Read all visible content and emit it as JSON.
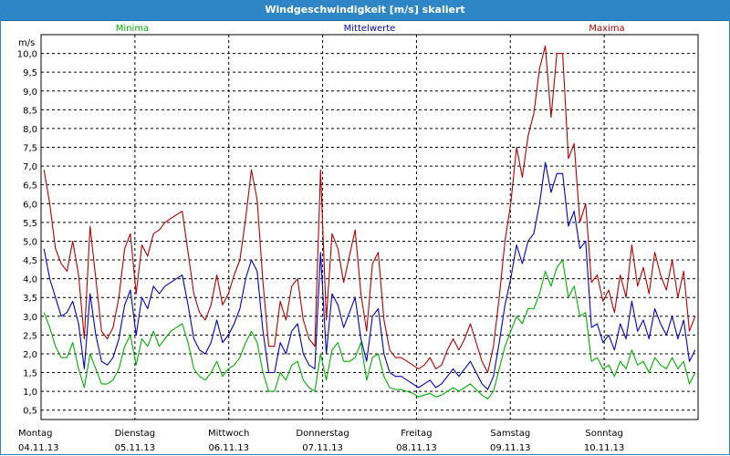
{
  "window_title": "Windgeschwindigkeit [m/s] skaliert",
  "chart_data": {
    "type": "line",
    "title": "Windgeschwindigkeit [m/s] skaliert",
    "ylabel": "m/s",
    "ylim": [
      0.25,
      10.5
    ],
    "yticks": [
      "0,5",
      "1,0",
      "1,5",
      "2,0",
      "2,5",
      "3,0",
      "3,5",
      "4,0",
      "4,5",
      "5,0",
      "5,5",
      "6,0",
      "6,5",
      "7,0",
      "7,5",
      "8,0",
      "8,5",
      "9,0",
      "9,5",
      "10,0"
    ],
    "x_range": [
      0,
      7
    ],
    "x_ticks": [
      {
        "day": "Montag",
        "date": "04.11.13",
        "x": 0
      },
      {
        "day": "Dienstag",
        "date": "05.11.13",
        "x": 1
      },
      {
        "day": "Mittwoch",
        "date": "06.11.13",
        "x": 2
      },
      {
        "day": "Donnerstag",
        "date": "07.11.13",
        "x": 3
      },
      {
        "day": "Freitag",
        "date": "08.11.13",
        "x": 4
      },
      {
        "day": "Samstag",
        "date": "09.11.13",
        "x": 5
      },
      {
        "day": "Sonntag",
        "date": "10.11.13",
        "x": 6
      }
    ],
    "grid": true,
    "legend_position": "top",
    "series": [
      {
        "name": "Minima",
        "color": "#00b000",
        "values": [
          3.1,
          2.7,
          2.2,
          1.9,
          1.9,
          2.3,
          1.6,
          1.1,
          2.0,
          1.6,
          1.2,
          1.2,
          1.3,
          1.6,
          2.2,
          2.5,
          1.7,
          2.4,
          2.2,
          2.6,
          2.2,
          2.4,
          2.6,
          2.7,
          2.8,
          2.3,
          1.6,
          1.4,
          1.3,
          1.5,
          1.8,
          1.4,
          1.6,
          1.7,
          1.9,
          2.3,
          2.6,
          2.3,
          1.5,
          1.0,
          1.0,
          1.5,
          1.3,
          1.7,
          1.8,
          1.3,
          1.1,
          1.0,
          2.0,
          1.3,
          2.1,
          2.3,
          1.8,
          1.8,
          1.9,
          2.3,
          1.3,
          1.9,
          2.0,
          1.4,
          1.1,
          1.05,
          1.05,
          1.0,
          0.95,
          0.85,
          0.9,
          0.95,
          0.85,
          0.9,
          1.0,
          1.1,
          1.0,
          1.1,
          1.2,
          1.05,
          0.9,
          0.8,
          1.0,
          1.6,
          2.2,
          2.6,
          3.0,
          2.8,
          3.2,
          3.2,
          3.6,
          4.2,
          3.8,
          4.3,
          4.5,
          3.5,
          3.8,
          3.0,
          3.1,
          1.8,
          1.9,
          1.6,
          1.7,
          1.4,
          1.8,
          1.6,
          2.1,
          1.7,
          1.8,
          1.5,
          1.9,
          1.7,
          1.6,
          1.9,
          1.6,
          1.8,
          1.2,
          1.5
        ]
      },
      {
        "name": "Mittelwerte",
        "color": "#0000c8",
        "values": [
          4.8,
          4.0,
          3.5,
          3.0,
          3.1,
          3.4,
          2.8,
          1.6,
          3.6,
          2.5,
          1.8,
          1.7,
          1.9,
          2.4,
          3.3,
          3.7,
          2.5,
          3.5,
          3.2,
          3.8,
          3.6,
          3.8,
          3.9,
          4.0,
          4.1,
          3.3,
          2.4,
          2.1,
          2.0,
          2.3,
          2.9,
          2.3,
          2.5,
          2.8,
          3.2,
          4.0,
          4.5,
          4.2,
          2.6,
          1.5,
          1.5,
          2.3,
          2.0,
          2.6,
          2.8,
          2.0,
          1.7,
          1.6,
          4.7,
          2.0,
          3.6,
          3.3,
          2.7,
          3.1,
          3.5,
          2.4,
          1.8,
          3.0,
          3.2,
          2.0,
          1.5,
          1.4,
          1.4,
          1.3,
          1.2,
          1.1,
          1.2,
          1.3,
          1.1,
          1.2,
          1.4,
          1.6,
          1.4,
          1.6,
          1.8,
          1.5,
          1.2,
          1.05,
          1.4,
          2.3,
          3.3,
          4.0,
          4.9,
          4.4,
          5.0,
          5.2,
          6.0,
          7.1,
          6.3,
          6.8,
          6.8,
          5.4,
          5.8,
          4.8,
          5.0,
          2.7,
          2.8,
          2.3,
          2.5,
          2.1,
          2.8,
          2.4,
          3.4,
          2.6,
          2.9,
          2.4,
          3.2,
          2.8,
          2.5,
          3.0,
          2.4,
          2.9,
          1.8,
          2.1
        ]
      },
      {
        "name": "Maxima",
        "color": "#b40000",
        "values": [
          6.9,
          6.0,
          4.8,
          4.4,
          4.2,
          5.0,
          4.1,
          2.4,
          5.4,
          4.0,
          2.6,
          2.4,
          2.7,
          3.5,
          4.8,
          5.2,
          3.6,
          4.9,
          4.6,
          5.2,
          5.3,
          5.5,
          5.6,
          5.7,
          5.8,
          4.7,
          3.6,
          3.1,
          2.9,
          3.3,
          4.1,
          3.3,
          3.6,
          4.1,
          4.5,
          5.6,
          6.9,
          6.1,
          3.9,
          2.2,
          2.2,
          3.4,
          2.9,
          3.8,
          4.0,
          2.9,
          2.4,
          2.2,
          6.9,
          2.9,
          5.2,
          4.8,
          3.9,
          4.6,
          5.3,
          3.6,
          2.6,
          4.4,
          4.7,
          2.9,
          2.1,
          1.9,
          1.9,
          1.8,
          1.7,
          1.6,
          1.7,
          1.9,
          1.6,
          1.7,
          2.1,
          2.4,
          2.1,
          2.4,
          2.8,
          2.3,
          1.8,
          1.5,
          2.2,
          3.5,
          5.0,
          6.0,
          7.5,
          6.7,
          7.8,
          8.4,
          9.6,
          10.2,
          8.3,
          10.0,
          10.0,
          7.2,
          7.6,
          5.5,
          6.0,
          3.9,
          4.1,
          3.4,
          3.7,
          3.1,
          4.1,
          3.5,
          4.9,
          3.8,
          4.3,
          3.6,
          4.7,
          4.1,
          3.7,
          4.5,
          3.5,
          4.2,
          2.6,
          3.0
        ]
      }
    ]
  }
}
